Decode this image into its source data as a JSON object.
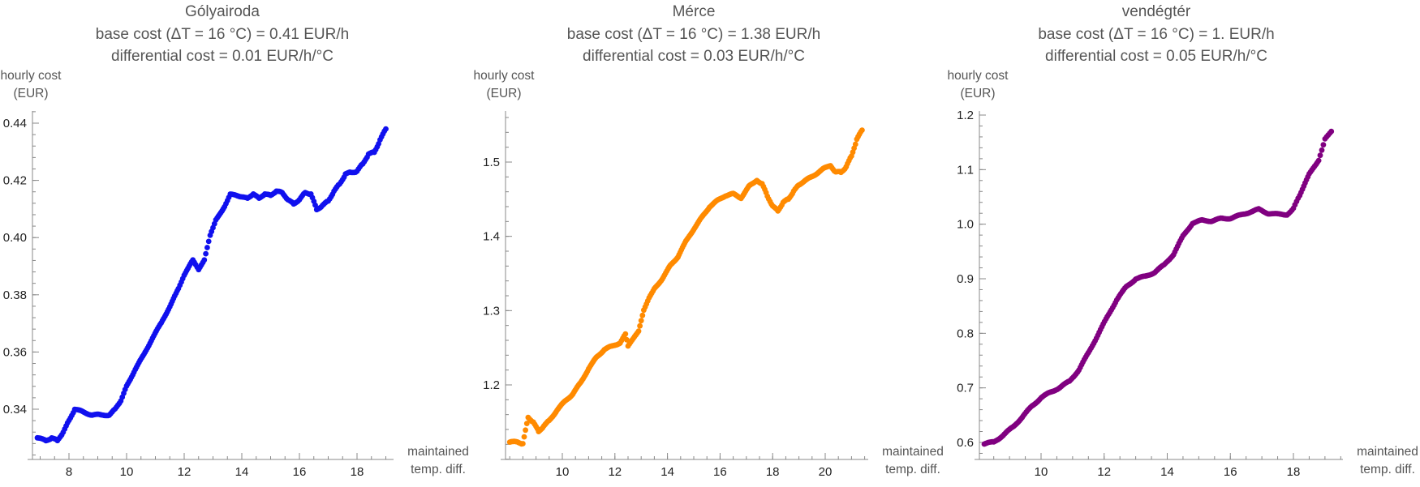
{
  "chart_data": [
    {
      "type": "scatter",
      "title": "Gólyairoda",
      "subtitle_lines": [
        "base cost (ΔT = 16 °C) = 0.41 EUR/h",
        "differential cost = 0.01 EUR/h/°C"
      ],
      "ylabel_lines": [
        "hourly cost",
        "(EUR)"
      ],
      "xlabel_lines": [
        "maintained",
        "temp. diff."
      ],
      "xlim": [
        6.8,
        19.7
      ],
      "ylim": [
        0.3257,
        0.4457
      ],
      "xticks": [
        8,
        10,
        12,
        14,
        16,
        18
      ],
      "yticks": [
        0.34,
        0.36,
        0.38,
        0.4,
        0.42,
        0.44
      ],
      "ytick_labels": [
        "0.34",
        "0.36",
        "0.38",
        "0.40",
        "0.42",
        "0.44"
      ],
      "color": "#1010ee",
      "series": [
        {
          "x": [
            6.9,
            7.2,
            7.4,
            7.6,
            7.8,
            8.0,
            8.2,
            8.5,
            8.8,
            9.1,
            9.4,
            9.6,
            9.8,
            10.0,
            10.3,
            10.6,
            10.9,
            11.2,
            11.5,
            11.8,
            12.0,
            12.3,
            12.5,
            12.7,
            12.9,
            13.1,
            13.4,
            13.6,
            13.8,
            14.0,
            14.2,
            14.4,
            14.6,
            14.8,
            15.0,
            15.2,
            15.4,
            15.6,
            15.8,
            16.0,
            16.2,
            16.4,
            16.6,
            16.8,
            17.0,
            17.2,
            17.4,
            17.6,
            17.8,
            18.0,
            18.2,
            18.4,
            18.6,
            18.8,
            19.0
          ],
          "y": [
            0.33,
            0.329,
            0.33,
            0.329,
            0.332,
            0.336,
            0.34,
            0.339,
            0.338,
            0.338,
            0.338,
            0.34,
            0.343,
            0.348,
            0.354,
            0.359,
            0.365,
            0.37,
            0.376,
            0.382,
            0.387,
            0.392,
            0.389,
            0.392,
            0.401,
            0.406,
            0.411,
            0.415,
            0.415,
            0.414,
            0.414,
            0.415,
            0.414,
            0.415,
            0.415,
            0.416,
            0.416,
            0.413,
            0.412,
            0.413,
            0.416,
            0.415,
            0.41,
            0.411,
            0.413,
            0.416,
            0.419,
            0.422,
            0.423,
            0.423,
            0.426,
            0.429,
            0.43,
            0.434,
            0.438
          ]
        }
      ]
    },
    {
      "type": "scatter",
      "title": "Mérce",
      "subtitle_lines": [
        "base cost (ΔT = 16 °C) = 1.38 EUR/h",
        "differential cost = 0.03 EUR/h/°C"
      ],
      "ylabel_lines": [
        "hourly cost",
        "(EUR)"
      ],
      "xlabel_lines": [
        "maintained",
        "temp. diff."
      ],
      "xlim": [
        6.9,
        22.0
      ],
      "ylim": [
        1.0994,
        1.5649
      ],
      "xticks": [
        10,
        12,
        14,
        16,
        18,
        20
      ],
      "yticks": [
        1.2,
        1.3,
        1.4,
        1.5
      ],
      "ytick_labels": [
        "1.2",
        "1.3",
        "1.4",
        "1.5"
      ],
      "color": "#ff8a00",
      "series": [
        {
          "x": [
            8.0,
            8.3,
            8.5,
            8.7,
            8.9,
            9.1,
            9.3,
            9.5,
            9.8,
            10.1,
            10.4,
            10.7,
            11.0,
            11.3,
            11.6,
            11.9,
            12.2,
            12.4,
            12.5,
            12.7,
            12.9,
            13.1,
            13.3,
            13.5,
            13.8,
            14.1,
            14.4,
            14.7,
            15.0,
            15.3,
            15.6,
            15.9,
            16.2,
            16.5,
            16.8,
            17.1,
            17.4,
            17.6,
            17.8,
            18.0,
            18.2,
            18.4,
            18.6,
            18.8,
            19.0,
            19.3,
            19.6,
            19.9,
            20.2,
            20.4,
            20.6,
            20.8,
            21.0,
            21.2,
            21.4
          ],
          "y": [
            1.123,
            1.123,
            1.121,
            1.156,
            1.15,
            1.137,
            1.145,
            1.152,
            1.166,
            1.178,
            1.188,
            1.203,
            1.222,
            1.237,
            1.248,
            1.252,
            1.257,
            1.268,
            1.253,
            1.262,
            1.273,
            1.3,
            1.318,
            1.329,
            1.343,
            1.36,
            1.373,
            1.393,
            1.41,
            1.425,
            1.44,
            1.448,
            1.455,
            1.457,
            1.452,
            1.467,
            1.476,
            1.47,
            1.455,
            1.44,
            1.435,
            1.445,
            1.451,
            1.46,
            1.47,
            1.476,
            1.483,
            1.49,
            1.496,
            1.486,
            1.487,
            1.493,
            1.509,
            1.53,
            1.543
          ]
        }
      ]
    },
    {
      "type": "scatter",
      "title": "vendégtér",
      "subtitle_lines": [
        "base cost (ΔT = 16 °C) = 1. EUR/h",
        "differential cost = 0.05 EUR/h/°C"
      ],
      "ylabel_lines": [
        "hourly cost",
        "(EUR)"
      ],
      "xlabel_lines": [
        "maintained",
        "temp. diff."
      ],
      "xlim": [
        6.7,
        20.1
      ],
      "ylim": [
        0.5685,
        1.2123
      ],
      "xticks": [
        10,
        12,
        14,
        16,
        18
      ],
      "yticks": [
        0.6,
        0.7,
        0.8,
        0.9,
        1.0,
        1.1,
        1.2
      ],
      "ytick_labels": [
        "0.6",
        "0.7",
        "0.8",
        "0.9",
        "1.0",
        "1.1",
        "1.2"
      ],
      "color": "#800080",
      "series": [
        {
          "x": [
            8.2,
            8.5,
            8.8,
            9.1,
            9.4,
            9.7,
            10.0,
            10.3,
            10.6,
            10.9,
            11.2,
            11.5,
            11.8,
            12.1,
            12.4,
            12.7,
            13.0,
            13.3,
            13.6,
            13.9,
            14.2,
            14.5,
            14.8,
            15.1,
            15.4,
            15.7,
            16.0,
            16.3,
            16.6,
            16.9,
            17.2,
            17.5,
            17.8,
            18.0,
            18.2,
            18.5,
            18.8,
            19.0,
            19.2
          ],
          "y": [
            0.597,
            0.601,
            0.613,
            0.628,
            0.646,
            0.666,
            0.682,
            0.692,
            0.701,
            0.712,
            0.733,
            0.764,
            0.797,
            0.83,
            0.862,
            0.885,
            0.9,
            0.904,
            0.912,
            0.925,
            0.945,
            0.978,
            1.002,
            1.007,
            1.006,
            1.01,
            1.011,
            1.016,
            1.022,
            1.027,
            1.02,
            1.018,
            1.018,
            1.028,
            1.054,
            1.091,
            1.118,
            1.155,
            1.17
          ]
        }
      ]
    }
  ]
}
